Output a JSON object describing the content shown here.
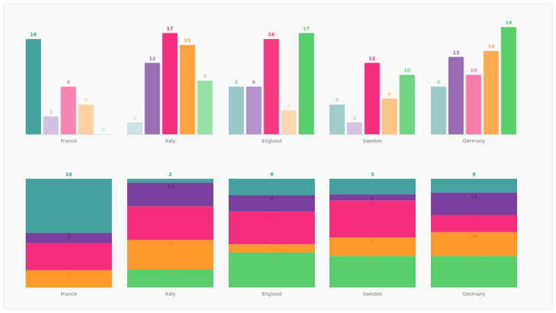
{
  "chart_data": [
    {
      "type": "bar",
      "categories": [
        "France",
        "Italy",
        "England",
        "Sweden",
        "Germany"
      ],
      "series": [
        {
          "values": [
            16,
            2,
            8,
            5,
            8
          ]
        },
        {
          "values": [
            3,
            12,
            8,
            2,
            13
          ]
        },
        {
          "values": [
            8,
            17,
            16,
            12,
            10
          ]
        },
        {
          "values": [
            5,
            15,
            4,
            6,
            14
          ]
        },
        {
          "values": [
            0,
            9,
            17,
            10,
            18
          ]
        }
      ],
      "ylim": [
        0,
        18
      ],
      "grid": false
    },
    {
      "type": "bar",
      "stacked": true,
      "normalized": true,
      "categories": [
        "France",
        "Italy",
        "England",
        "Sweden",
        "Germany"
      ],
      "series": [
        {
          "values": [
            16,
            2,
            8,
            5,
            8
          ]
        },
        {
          "values": [
            3,
            12,
            8,
            2,
            13
          ]
        },
        {
          "values": [
            8,
            17,
            16,
            12,
            10
          ]
        },
        {
          "values": [
            5,
            15,
            4,
            6,
            14
          ]
        },
        {
          "values": [
            0,
            9,
            17,
            10,
            18
          ]
        }
      ],
      "grid": false
    }
  ],
  "colors": [
    "#45a29e",
    "#7b3fa0",
    "#f42e7c",
    "#ff9a2a",
    "#58cf6c"
  ]
}
